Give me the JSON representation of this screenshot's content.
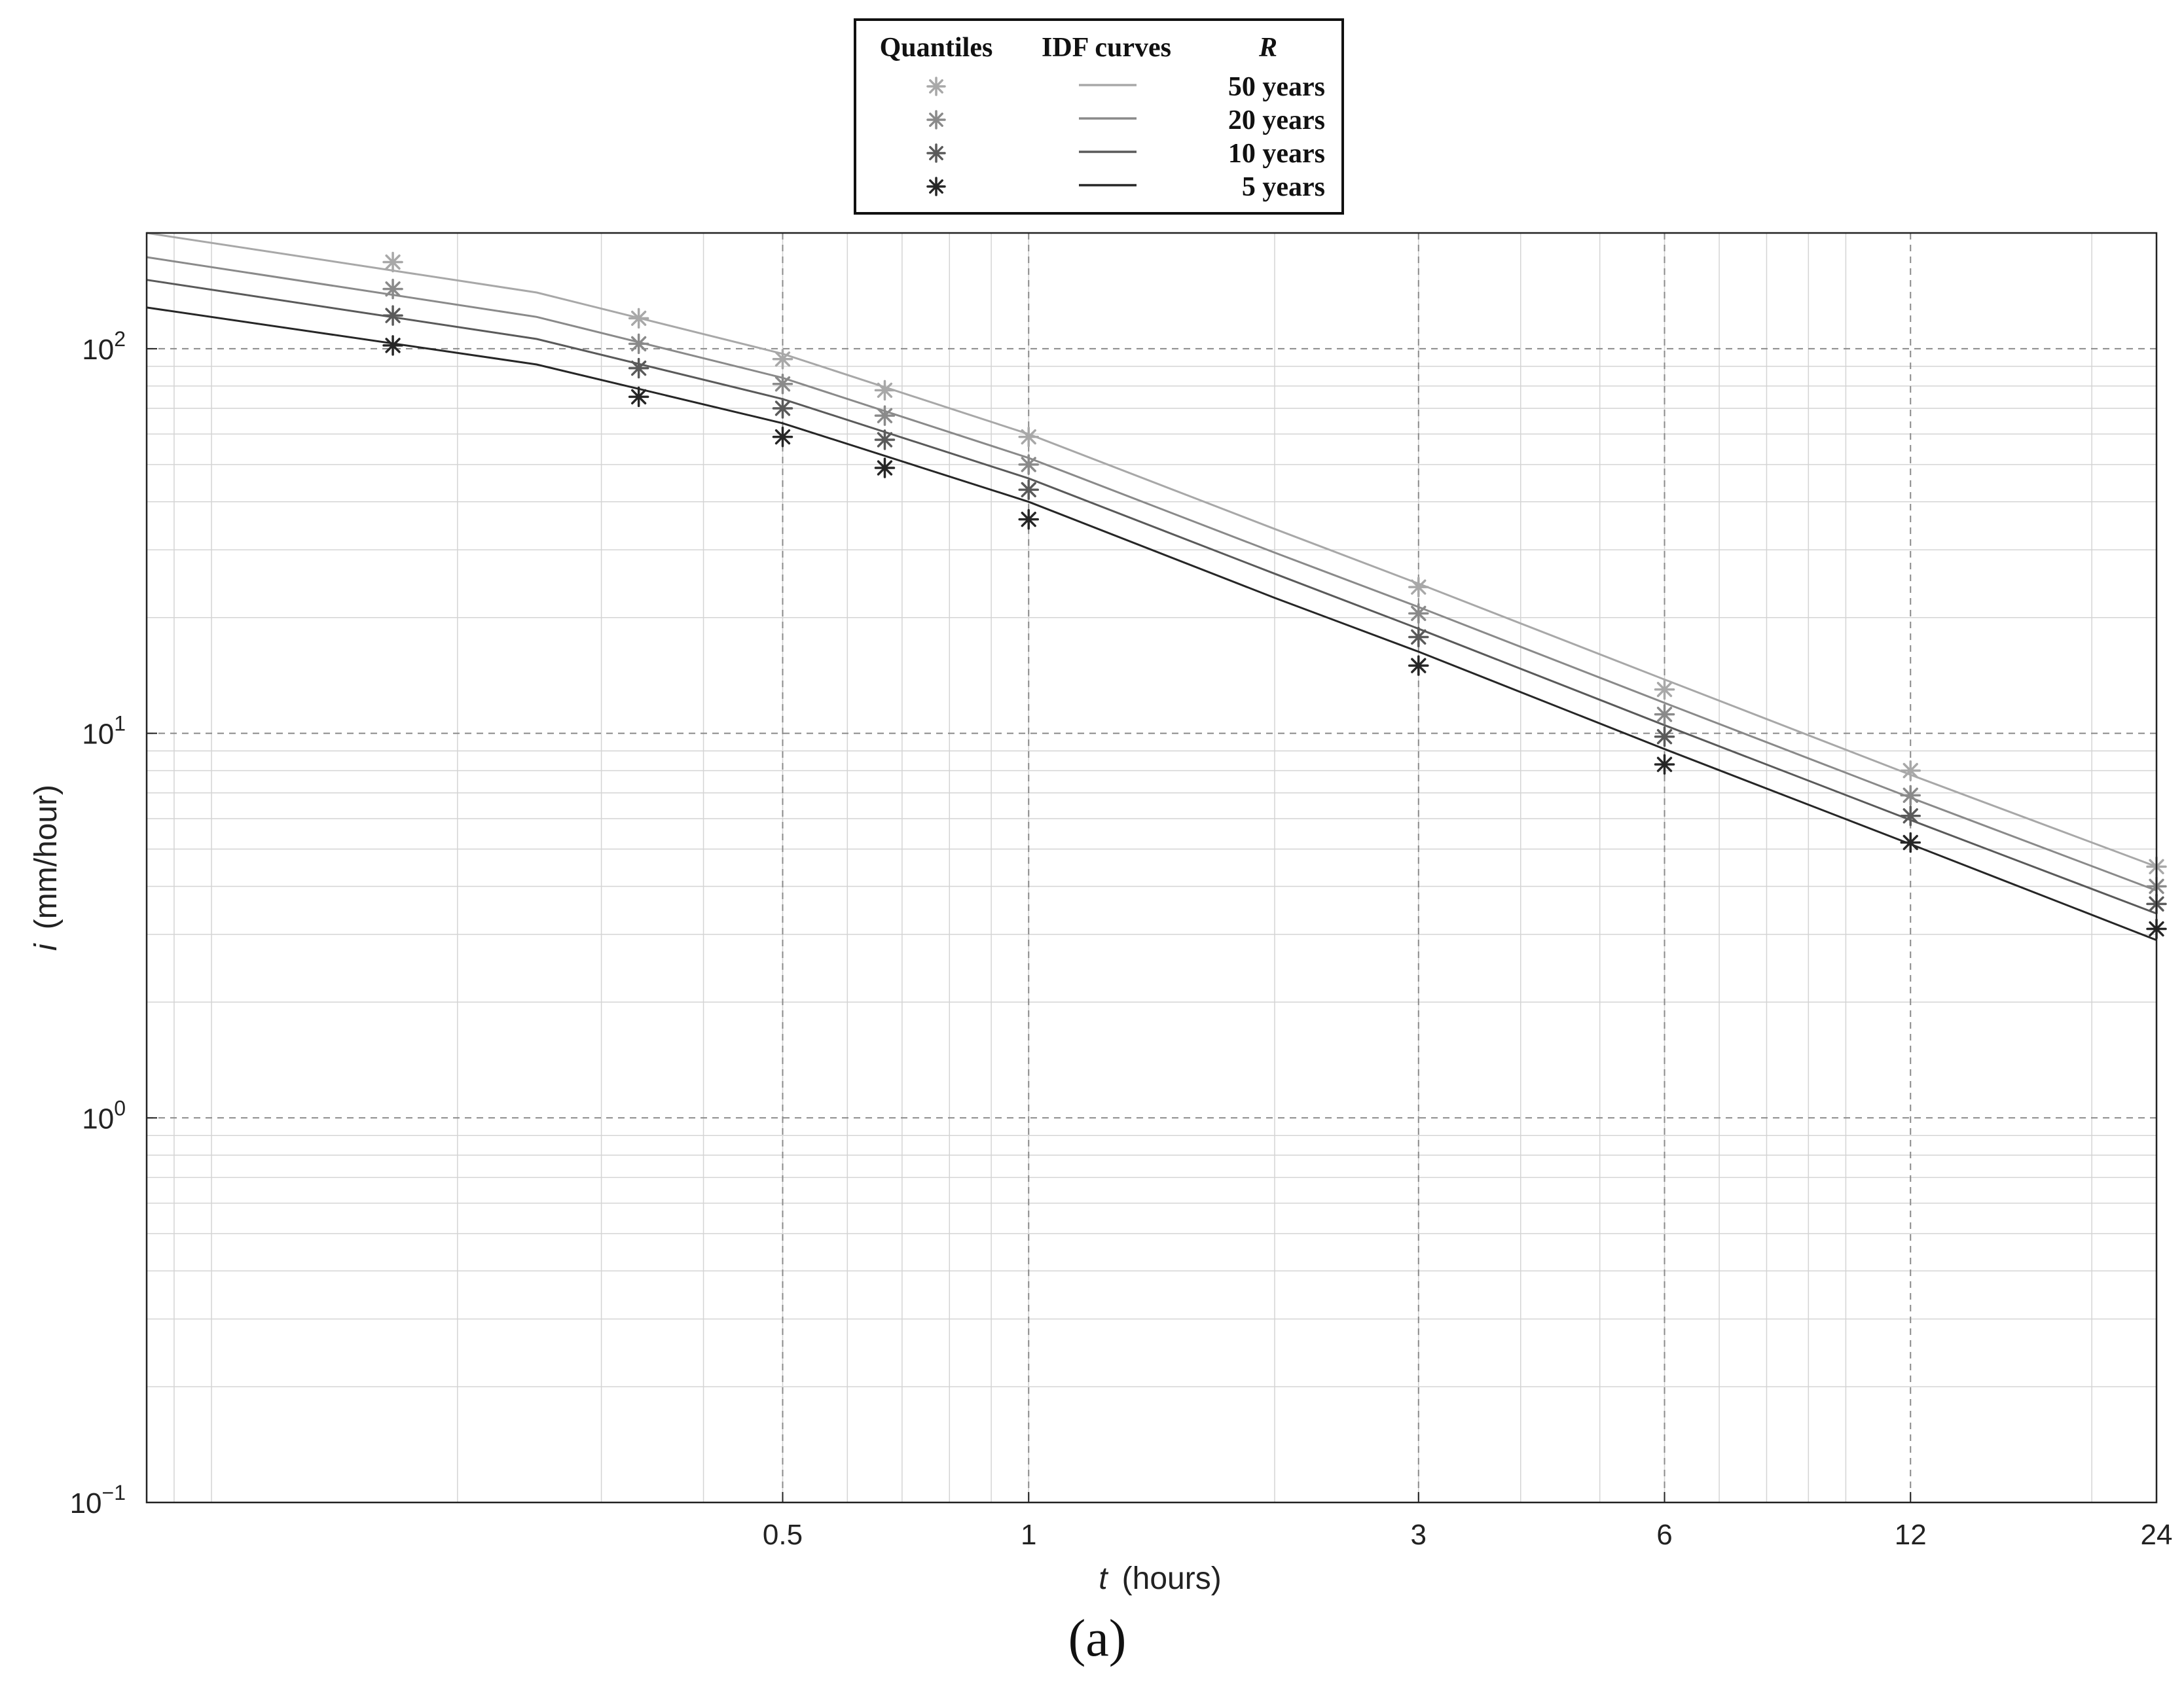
{
  "caption": "(a)",
  "chart_data": {
    "type": "line",
    "xlabel_var": "t",
    "xlabel_unit": "(hours)",
    "ylabel_var": "i",
    "ylabel_unit": "(mm/hour)",
    "x_scale": "log",
    "y_scale": "log",
    "xlim": [
      0.0833,
      24
    ],
    "ylim": [
      0.1,
      200
    ],
    "grid": true,
    "x_ticks": [
      {
        "value": 0.5,
        "label": "0.5"
      },
      {
        "value": 1,
        "label": "1"
      },
      {
        "value": 3,
        "label": "3"
      },
      {
        "value": 6,
        "label": "6"
      },
      {
        "value": 12,
        "label": "12"
      },
      {
        "value": 24,
        "label": "24"
      }
    ],
    "y_ticks": [
      {
        "value": 100,
        "base": "10",
        "exp": "2"
      },
      {
        "value": 10,
        "base": "10",
        "exp": "1"
      },
      {
        "value": 1,
        "base": "10",
        "exp": "0"
      },
      {
        "value": 0.1,
        "base": "10",
        "exp": "−1"
      }
    ],
    "legend": {
      "placement": "top-center",
      "header_quantiles": "Quantiles",
      "header_curves": "IDF curves",
      "header_r": "R"
    },
    "quantile_x": [
      0.1667,
      0.3333,
      0.5,
      0.6667,
      1,
      3,
      6,
      12,
      24
    ],
    "series": [
      {
        "name": "50 years",
        "color": "#a8a8a8",
        "quantiles": [
          168,
          120,
          94,
          78,
          59,
          24,
          13,
          8,
          4.5
        ],
        "curve_x": [
          0.0833,
          0.25,
          0.5,
          1,
          2,
          3,
          6,
          12,
          24
        ],
        "curve_y": [
          200,
          140,
          97,
          60,
          34,
          24.5,
          13.8,
          7.8,
          4.5
        ]
      },
      {
        "name": "20 years",
        "color": "#8a8a8a",
        "quantiles": [
          143,
          103,
          81,
          67,
          50,
          20.5,
          11.2,
          6.9,
          4
        ],
        "curve_x": [
          0.0833,
          0.25,
          0.5,
          1,
          2,
          3,
          6,
          12,
          24
        ],
        "curve_y": [
          173,
          121,
          84,
          52,
          29.5,
          21.3,
          12,
          6.8,
          3.9
        ]
      },
      {
        "name": "10 years",
        "color": "#5a5a5a",
        "quantiles": [
          122,
          89,
          70,
          58,
          43,
          17.8,
          9.8,
          6.1,
          3.6
        ],
        "curve_x": [
          0.0833,
          0.25,
          0.5,
          1,
          2,
          3,
          6,
          12,
          24
        ],
        "curve_y": [
          151,
          106,
          74,
          46,
          26,
          18.7,
          10.5,
          5.95,
          3.4
        ]
      },
      {
        "name": "5 years",
        "color": "#262626",
        "quantiles": [
          102,
          75,
          59,
          49,
          36,
          15,
          8.3,
          5.2,
          3.1
        ],
        "curve_x": [
          0.0833,
          0.25,
          0.5,
          1,
          2,
          3,
          6,
          12,
          24
        ],
        "curve_y": [
          128,
          91,
          64,
          40,
          22.5,
          16.3,
          9.1,
          5.15,
          2.9
        ]
      }
    ]
  }
}
